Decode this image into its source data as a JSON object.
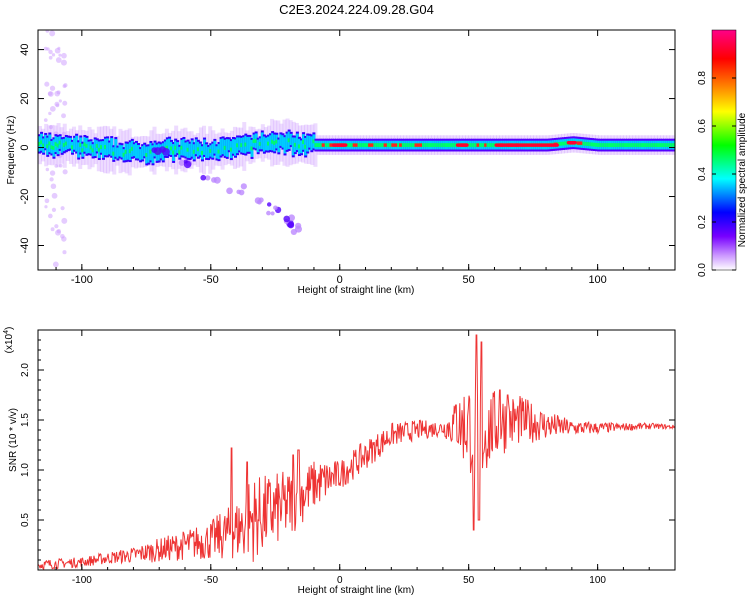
{
  "title": "C2E3.2024.224.09.28.G04",
  "chart_data": [
    {
      "type": "heatmap",
      "xlabel": "Height of straight line (km)",
      "ylabel": "Frequency (Hz)",
      "xlim": [
        -117,
        130
      ],
      "ylim": [
        -50,
        48
      ],
      "xticks": [
        -100,
        -50,
        0,
        50,
        100
      ],
      "xtick_labels": [
        "-100",
        "-50",
        "0",
        "50",
        "100"
      ],
      "yticks": [
        -40,
        -20,
        0,
        20,
        40
      ],
      "ytick_labels": [
        "-40",
        "-20",
        "0",
        "20",
        "40"
      ],
      "colorbar": {
        "label": "Normalized spectral amplitude",
        "range": [
          0,
          1
        ],
        "ticks": [
          0.0,
          0.2,
          0.4,
          0.6,
          0.8
        ],
        "tick_labels": [
          "0.0",
          "0.2",
          "0.4",
          "0.6",
          "0.8"
        ],
        "colormap": [
          "#ffffff",
          "#7700ff",
          "#0000ff",
          "#00ffff",
          "#00ff00",
          "#ffff00",
          "#ff7700",
          "#ff0000",
          "#ff0077"
        ]
      },
      "band_center": [
        [
          -117,
          1
        ],
        [
          -110,
          1
        ],
        [
          -100,
          0
        ],
        [
          -90,
          -1
        ],
        [
          -80,
          -2
        ],
        [
          -70,
          -1
        ],
        [
          -60,
          -1
        ],
        [
          -50,
          -1
        ],
        [
          -40,
          0
        ],
        [
          -30,
          2
        ],
        [
          -20,
          2
        ],
        [
          -10,
          1
        ],
        [
          0,
          1
        ],
        [
          20,
          1
        ],
        [
          40,
          1
        ],
        [
          60,
          1
        ],
        [
          80,
          1
        ],
        [
          90,
          2
        ],
        [
          100,
          1
        ],
        [
          130,
          1
        ]
      ],
      "trail_points": [
        [
          -70,
          -1
        ],
        [
          -60,
          -7
        ],
        [
          -50,
          -12
        ],
        [
          -40,
          -17
        ],
        [
          -30,
          -22
        ],
        [
          -25,
          -26
        ],
        [
          -20,
          -30
        ],
        [
          -18,
          -33
        ]
      ],
      "dense_segments": [
        [
          -10,
          100
        ]
      ]
    },
    {
      "type": "line",
      "xlabel": "Height of straight line (km)",
      "ylabel": "SNR (10 * v/v)",
      "y_multiplier": "(x10",
      "y_multiplier_exp": "4",
      "xlim": [
        -117,
        130
      ],
      "ylim": [
        0,
        2.4
      ],
      "xticks": [
        -100,
        -50,
        0,
        50,
        100
      ],
      "xtick_labels": [
        "-100",
        "-50",
        "0",
        "50",
        "100"
      ],
      "yticks": [
        0.5,
        1.0,
        1.5,
        2.0
      ],
      "ytick_labels": [
        "0.5",
        "1.0",
        "1.5",
        "2.0"
      ],
      "color": "#ee3333",
      "envelope": [
        [
          -117,
          0.05,
          0.05
        ],
        [
          -100,
          0.08,
          0.05
        ],
        [
          -90,
          0.12,
          0.06
        ],
        [
          -80,
          0.15,
          0.08
        ],
        [
          -70,
          0.2,
          0.12
        ],
        [
          -60,
          0.25,
          0.15
        ],
        [
          -50,
          0.3,
          0.2
        ],
        [
          -40,
          0.4,
          0.3
        ],
        [
          -35,
          0.5,
          0.45
        ],
        [
          -30,
          0.55,
          0.4
        ],
        [
          -20,
          0.65,
          0.35
        ],
        [
          -10,
          0.85,
          0.25
        ],
        [
          0,
          0.95,
          0.15
        ],
        [
          10,
          1.15,
          0.15
        ],
        [
          20,
          1.35,
          0.12
        ],
        [
          30,
          1.4,
          0.1
        ],
        [
          40,
          1.42,
          0.08
        ],
        [
          45,
          1.45,
          0.25
        ],
        [
          50,
          1.45,
          0.5
        ],
        [
          55,
          1.35,
          0.5
        ],
        [
          60,
          1.45,
          0.35
        ],
        [
          70,
          1.5,
          0.25
        ],
        [
          80,
          1.45,
          0.15
        ],
        [
          90,
          1.42,
          0.08
        ],
        [
          100,
          1.42,
          0.06
        ],
        [
          110,
          1.43,
          0.04
        ],
        [
          120,
          1.44,
          0.03
        ],
        [
          130,
          1.43,
          0.02
        ]
      ],
      "peaks": [
        [
          -42,
          1.22
        ],
        [
          -36,
          1.08
        ],
        [
          -18,
          1.15
        ],
        [
          -16,
          1.2
        ],
        [
          53,
          2.35
        ],
        [
          55,
          2.28
        ],
        [
          52,
          0.4
        ],
        [
          54,
          0.5
        ],
        [
          45,
          1.65
        ],
        [
          65,
          1.75
        ],
        [
          62,
          1.8
        ]
      ]
    }
  ]
}
